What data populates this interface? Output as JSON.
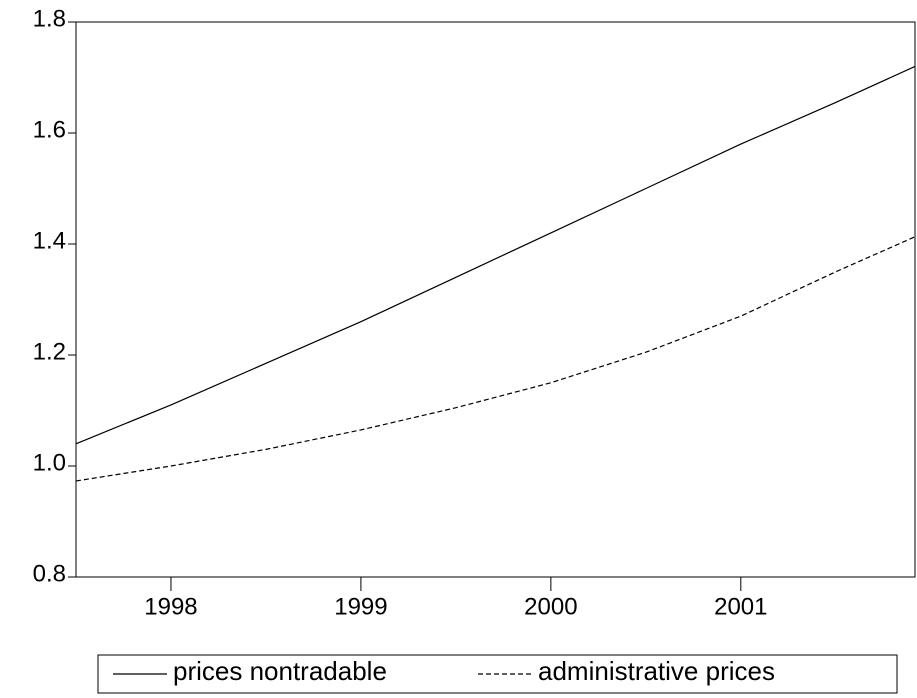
{
  "chart_data": {
    "type": "line",
    "x": [
      1997.5,
      1998,
      1998.5,
      1999,
      1999.5,
      2000,
      2000.5,
      2001,
      2001.5,
      2001.917
    ],
    "series": [
      {
        "name": "prices nontradable",
        "color": "#000000",
        "dash": "solid",
        "values": [
          1.04,
          1.11,
          1.185,
          1.26,
          1.34,
          1.42,
          1.5,
          1.58,
          1.655,
          1.72
        ]
      },
      {
        "name": "administrative prices",
        "color": "#000000",
        "dash": "dashed",
        "values": [
          0.973,
          1.0,
          1.03,
          1.065,
          1.105,
          1.15,
          1.205,
          1.27,
          1.35,
          1.413
        ]
      }
    ],
    "xlim": [
      1997.5,
      2001.917
    ],
    "xticks": [
      1998,
      1999,
      2000,
      2001
    ],
    "ylim": [
      0.8,
      1.8
    ],
    "yticks": [
      0.8,
      {
        "value": 1.0,
        "label": "1.0"
      },
      1.2,
      1.4,
      1.6,
      1.8
    ],
    "grid": false,
    "legend": "bottom"
  }
}
